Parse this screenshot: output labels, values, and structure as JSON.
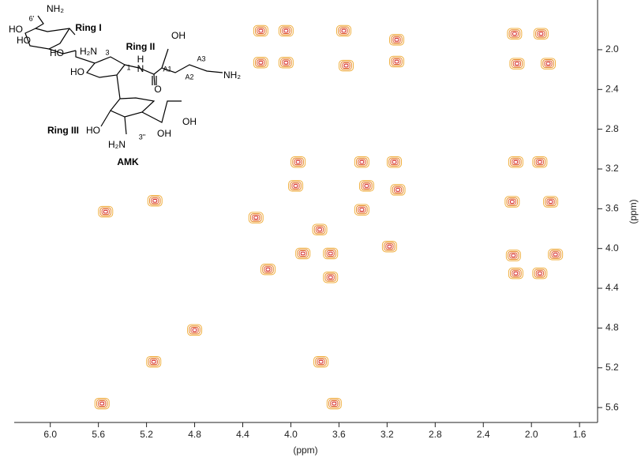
{
  "chart_data": {
    "type": "contour",
    "x_label": "(ppm)",
    "y_label": "(ppm)",
    "xlim": [
      6.3,
      1.45
    ],
    "ylim": [
      1.5,
      5.75
    ],
    "xticks": [
      {
        "value": 6,
        "label": "6.0"
      },
      5.6,
      5.2,
      4.8,
      4.4,
      {
        "value": 4,
        "label": "4.0"
      },
      3.6,
      3.2,
      2.8,
      2.4,
      {
        "value": 2,
        "label": "2.0"
      },
      1.6
    ],
    "yticks": [
      {
        "value": 2,
        "label": "2.0"
      },
      2.4,
      2.8,
      3.2,
      3.6,
      {
        "value": 4,
        "label": "4.0"
      },
      4.4,
      4.8,
      5.2,
      5.6
    ],
    "colors": [
      "#f0b040",
      "#e88a2a",
      "#e0582a",
      "#d42a2a"
    ],
    "x": [
      5.57,
      5.14,
      4.8,
      5.54,
      5.13,
      4.25,
      4.25,
      4.04,
      4.04,
      3.56,
      3.54,
      3.12,
      3.12,
      2.14,
      1.92,
      2.12,
      1.86,
      3.94,
      3.41,
      3.14,
      3.96,
      3.37,
      3.11,
      3.76,
      3.9,
      3.67,
      3.41,
      4.19,
      3.18,
      4.29,
      2.13,
      1.93,
      1.84,
      2.16,
      2.15,
      1.8,
      2.13,
      1.93,
      3.75,
      3.64,
      3.67
    ],
    "y": [
      5.56,
      5.14,
      4.82,
      3.63,
      3.52,
      1.81,
      2.13,
      1.81,
      2.13,
      1.81,
      2.16,
      1.9,
      2.12,
      1.84,
      1.84,
      2.14,
      2.14,
      3.13,
      3.13,
      3.13,
      3.37,
      3.37,
      3.41,
      3.81,
      4.05,
      4.05,
      3.61,
      4.21,
      3.98,
      3.69,
      3.13,
      3.13,
      3.53,
      3.53,
      4.07,
      4.06,
      4.25,
      4.25,
      5.14,
      5.56,
      4.29
    ],
    "annotations": [
      "NH₂",
      "6'",
      "HO",
      "Ring I",
      "HO",
      "HO",
      "H₂N",
      "3",
      "Ring II",
      "OH",
      "H",
      "N",
      "1",
      "A1",
      "A3",
      "A2",
      "NH₂",
      "HO",
      "O",
      "Ring III",
      "HO",
      "OH",
      "OH",
      "H₂N",
      "3''",
      "AMK"
    ]
  }
}
